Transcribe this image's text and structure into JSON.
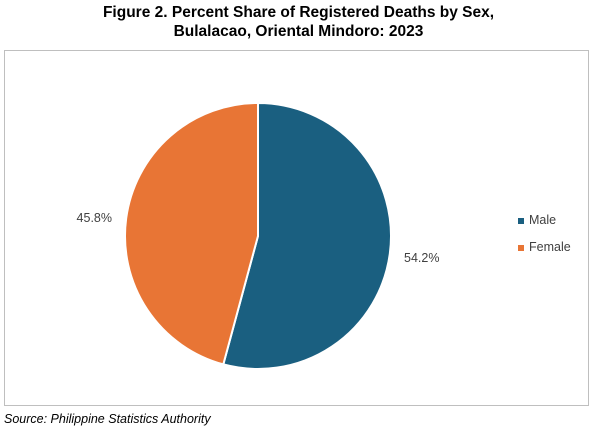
{
  "chart_data": {
    "type": "pie",
    "title_lines": [
      "Figure 2. Percent Share of Registered Deaths by Sex,",
      "Bulalacao, Oriental Mindoro: 2023"
    ],
    "series": [
      {
        "name": "Male",
        "value": 54.2,
        "label": "54.2%",
        "color": "#1a5f80"
      },
      {
        "name": "Female",
        "value": 45.8,
        "label": "45.8%",
        "color": "#e87535"
      }
    ],
    "start_angle_deg": 0,
    "direction": "clockwise",
    "legend_position": "right"
  },
  "source": "Source: Philippine Statistics Authority"
}
